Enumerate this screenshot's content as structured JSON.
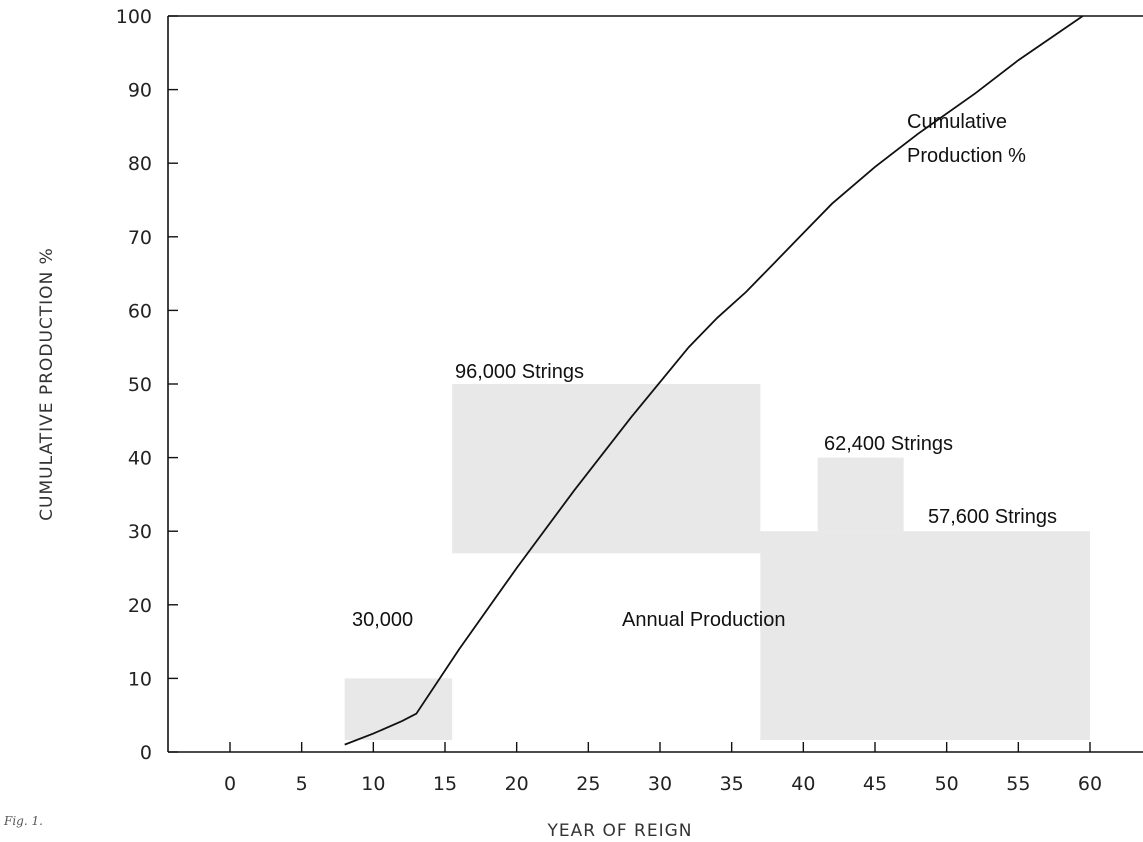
{
  "figure_label": "Fig. 1.",
  "chart_data": {
    "type": "line",
    "xlabel": "YEAR OF REIGN",
    "ylabel": "CUMULATIVE PRODUCTION %",
    "xlim": [
      -5,
      64
    ],
    "ylim": [
      0,
      100
    ],
    "x_ticks": [
      0,
      5,
      10,
      15,
      20,
      25,
      30,
      35,
      40,
      45,
      50,
      55,
      60
    ],
    "y_ticks": [
      0,
      10,
      20,
      30,
      40,
      50,
      60,
      70,
      80,
      90,
      100
    ],
    "grid": false,
    "series": [
      {
        "name": "Cumulative Production %",
        "x": [
          8,
          10,
          12,
          13,
          16,
          20,
          24,
          28,
          32,
          34,
          36,
          38,
          40,
          42,
          45,
          48,
          52,
          55,
          59.5
        ],
        "y": [
          1,
          2.5,
          4.2,
          5.2,
          14,
          25,
          35.5,
          45.5,
          55,
          59,
          62.5,
          66.5,
          70.5,
          74.5,
          79.5,
          84,
          89.5,
          94,
          100
        ]
      }
    ],
    "annual_production": {
      "name": "Annual Production",
      "blocks": [
        {
          "label": "30,000",
          "x": [
            8,
            15.5
          ],
          "level": 10
        },
        {
          "label": "96,000 Strings",
          "x": [
            15.5,
            37
          ],
          "level": 50
        },
        {
          "label": "62,400 Strings",
          "x": [
            41,
            47
          ],
          "level": 40
        },
        {
          "label": "57,600 Strings",
          "x": [
            37,
            60
          ],
          "level": 30
        }
      ]
    }
  }
}
